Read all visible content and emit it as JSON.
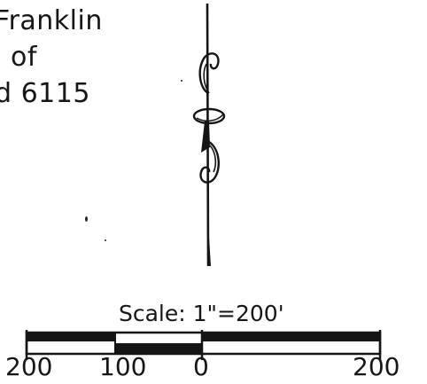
{
  "title_lines": [
    "Franklin",
    "of",
    "d 6115"
  ],
  "scale": {
    "caption": "Scale: 1\"=200'",
    "tick_labels": [
      "200",
      "100",
      "0",
      "200"
    ]
  },
  "colors": {
    "ink": "#161616",
    "paper": "#ffffff"
  },
  "icons": [
    "north-arrow-icon"
  ]
}
